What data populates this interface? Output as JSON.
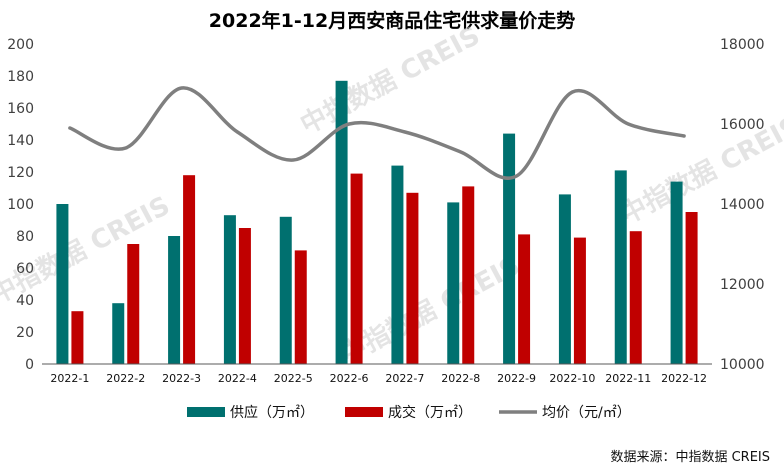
{
  "watermarks": [
    "中指数据 CREIS",
    "中指数据 CREIS",
    "中指数据 CREIS",
    "中指数据 CREIS"
  ],
  "source": "数据来源：中指数据 CREIS",
  "colors": {
    "supply": "#00706f",
    "deal": "#c00000",
    "price": "#7f7f7f",
    "axis": "#595959"
  },
  "chart_data": {
    "type": "bar",
    "title": "2022年1-12月西安商品住宅供求量价走势",
    "categories": [
      "2022-1",
      "2022-2",
      "2022-3",
      "2022-4",
      "2022-5",
      "2022-6",
      "2022-7",
      "2022-8",
      "2022-9",
      "2022-10",
      "2022-11",
      "2022-12"
    ],
    "series": [
      {
        "name": "供应（万㎡）",
        "type": "bar",
        "axis": "left",
        "values": [
          100,
          38,
          80,
          93,
          92,
          177,
          124,
          101,
          144,
          106,
          121,
          114
        ]
      },
      {
        "name": "成交（万㎡）",
        "type": "bar",
        "axis": "left",
        "values": [
          33,
          75,
          118,
          85,
          71,
          119,
          107,
          111,
          81,
          79,
          83,
          95
        ]
      },
      {
        "name": "均价（元/㎡）",
        "type": "line",
        "axis": "right",
        "values": [
          15900,
          15400,
          16900,
          15800,
          15100,
          16000,
          15800,
          15300,
          14700,
          16800,
          16000,
          15700
        ]
      }
    ],
    "y_left": {
      "min": 0,
      "max": 200,
      "ticks": [
        0,
        20,
        40,
        60,
        80,
        100,
        120,
        140,
        160,
        180,
        200
      ]
    },
    "y_right": {
      "min": 10000,
      "max": 18000,
      "ticks": [
        10000,
        12000,
        14000,
        16000,
        18000
      ]
    },
    "legend_position": "bottom",
    "grid": false
  }
}
